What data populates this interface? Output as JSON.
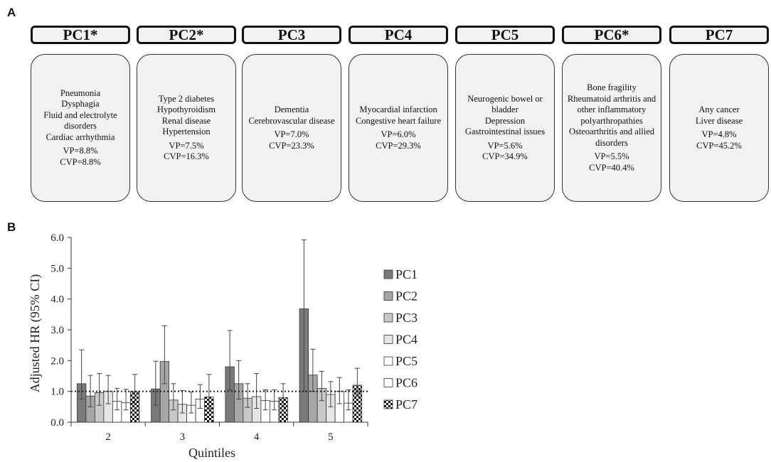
{
  "panel_a": {
    "letter": "A",
    "components": [
      {
        "header": "PC1*",
        "conditions": [
          "Pneumonia",
          "Dysphagia",
          "Fluid and electrolyte disorders",
          "Cardiac arrhythmia"
        ],
        "vp": "VP=8.8%",
        "cvp": "CVP=8.8%"
      },
      {
        "header": "PC2*",
        "conditions": [
          "Type 2 diabetes",
          "Hypothyroidism",
          "Renal disease",
          "Hypertension"
        ],
        "vp": "VP=7.5%",
        "cvp": "CVP=16.3%"
      },
      {
        "header": "PC3",
        "conditions": [
          "Dementia",
          "Cerebrovascular disease"
        ],
        "vp": "VP=7.0%",
        "cvp": "CVP=23.3%"
      },
      {
        "header": "PC4",
        "conditions": [
          "Myocardial infarction",
          "Congestive heart failure"
        ],
        "vp": "VP=6.0%",
        "cvp": "CVP=29.3%"
      },
      {
        "header": "PC5",
        "conditions": [
          "Neurogenic bowel or bladder",
          "Depression",
          "Gastrointestinal issues"
        ],
        "vp": "VP=5.6%",
        "cvp": "CVP=34.9%"
      },
      {
        "header": "PC6*",
        "conditions": [
          "Bone fragility",
          "Rheumatoid arthritis and other inflammatory polyarthropathies",
          "Osteoarthritis and allied disorders"
        ],
        "vp": "VP=5.5%",
        "cvp": "CVP=40.4%"
      },
      {
        "header": "PC7",
        "conditions": [
          "Any cancer",
          "Liver disease"
        ],
        "vp": "VP=4.8%",
        "cvp": "CVP=45.2%"
      }
    ]
  },
  "panel_b": {
    "letter": "B"
  },
  "chart_data": {
    "type": "bar",
    "title": "",
    "xlabel": "Quintiles",
    "ylabel": "Adjusted HR (95% CI)",
    "ylim": [
      0,
      6
    ],
    "yticks": [
      "0.0",
      "1.0",
      "2.0",
      "3.0",
      "4.0",
      "5.0",
      "6.0"
    ],
    "categories": [
      "2",
      "3",
      "4",
      "5"
    ],
    "reference_line": 1.0,
    "legend_position": "right",
    "series": [
      {
        "name": "PC1",
        "fill": "#7a7a7a",
        "pattern": "solid",
        "values": [
          1.25,
          1.08,
          1.8,
          3.68
        ],
        "ci_low": [
          0.75,
          0.55,
          1.05,
          1.0
        ],
        "ci_high": [
          2.35,
          1.98,
          2.98,
          5.92
        ]
      },
      {
        "name": "PC2",
        "fill": "#a6a6a6",
        "pattern": "solid",
        "values": [
          0.85,
          1.97,
          1.25,
          1.53
        ],
        "ci_low": [
          0.5,
          1.25,
          0.75,
          1.0
        ],
        "ci_high": [
          1.52,
          3.13,
          2.0,
          2.37
        ]
      },
      {
        "name": "PC3",
        "fill": "#c9c9c9",
        "pattern": "solid",
        "values": [
          0.96,
          0.72,
          0.78,
          1.1
        ],
        "ci_low": [
          0.55,
          0.4,
          0.48,
          0.7
        ],
        "ci_high": [
          1.58,
          1.25,
          1.25,
          1.65
        ]
      },
      {
        "name": "PC4",
        "fill": "#e6e6e6",
        "pattern": "solid",
        "values": [
          1.0,
          0.58,
          0.83,
          0.9
        ],
        "ci_low": [
          0.6,
          0.3,
          0.45,
          0.5
        ],
        "ci_high": [
          1.52,
          1.03,
          1.58,
          1.32
        ]
      },
      {
        "name": "PC5",
        "fill": "#ffffff",
        "pattern": "solid",
        "values": [
          0.68,
          0.55,
          0.7,
          1.0
        ],
        "ci_low": [
          0.4,
          0.3,
          0.4,
          0.6
        ],
        "ci_high": [
          1.1,
          0.98,
          1.05,
          1.45
        ]
      },
      {
        "name": "PC6",
        "fill": "#ffffff",
        "pattern": "solid",
        "values": [
          0.63,
          0.75,
          0.68,
          0.62
        ],
        "ci_low": [
          0.4,
          0.45,
          0.4,
          0.4
        ],
        "ci_high": [
          1.07,
          1.22,
          1.05,
          1.05
        ]
      },
      {
        "name": "PC7",
        "fill": "#111111",
        "pattern": "checker",
        "values": [
          1.0,
          0.82,
          0.8,
          1.2
        ],
        "ci_low": [
          0.6,
          0.45,
          0.5,
          0.85
        ],
        "ci_high": [
          1.55,
          1.55,
          1.25,
          1.75
        ]
      }
    ]
  }
}
